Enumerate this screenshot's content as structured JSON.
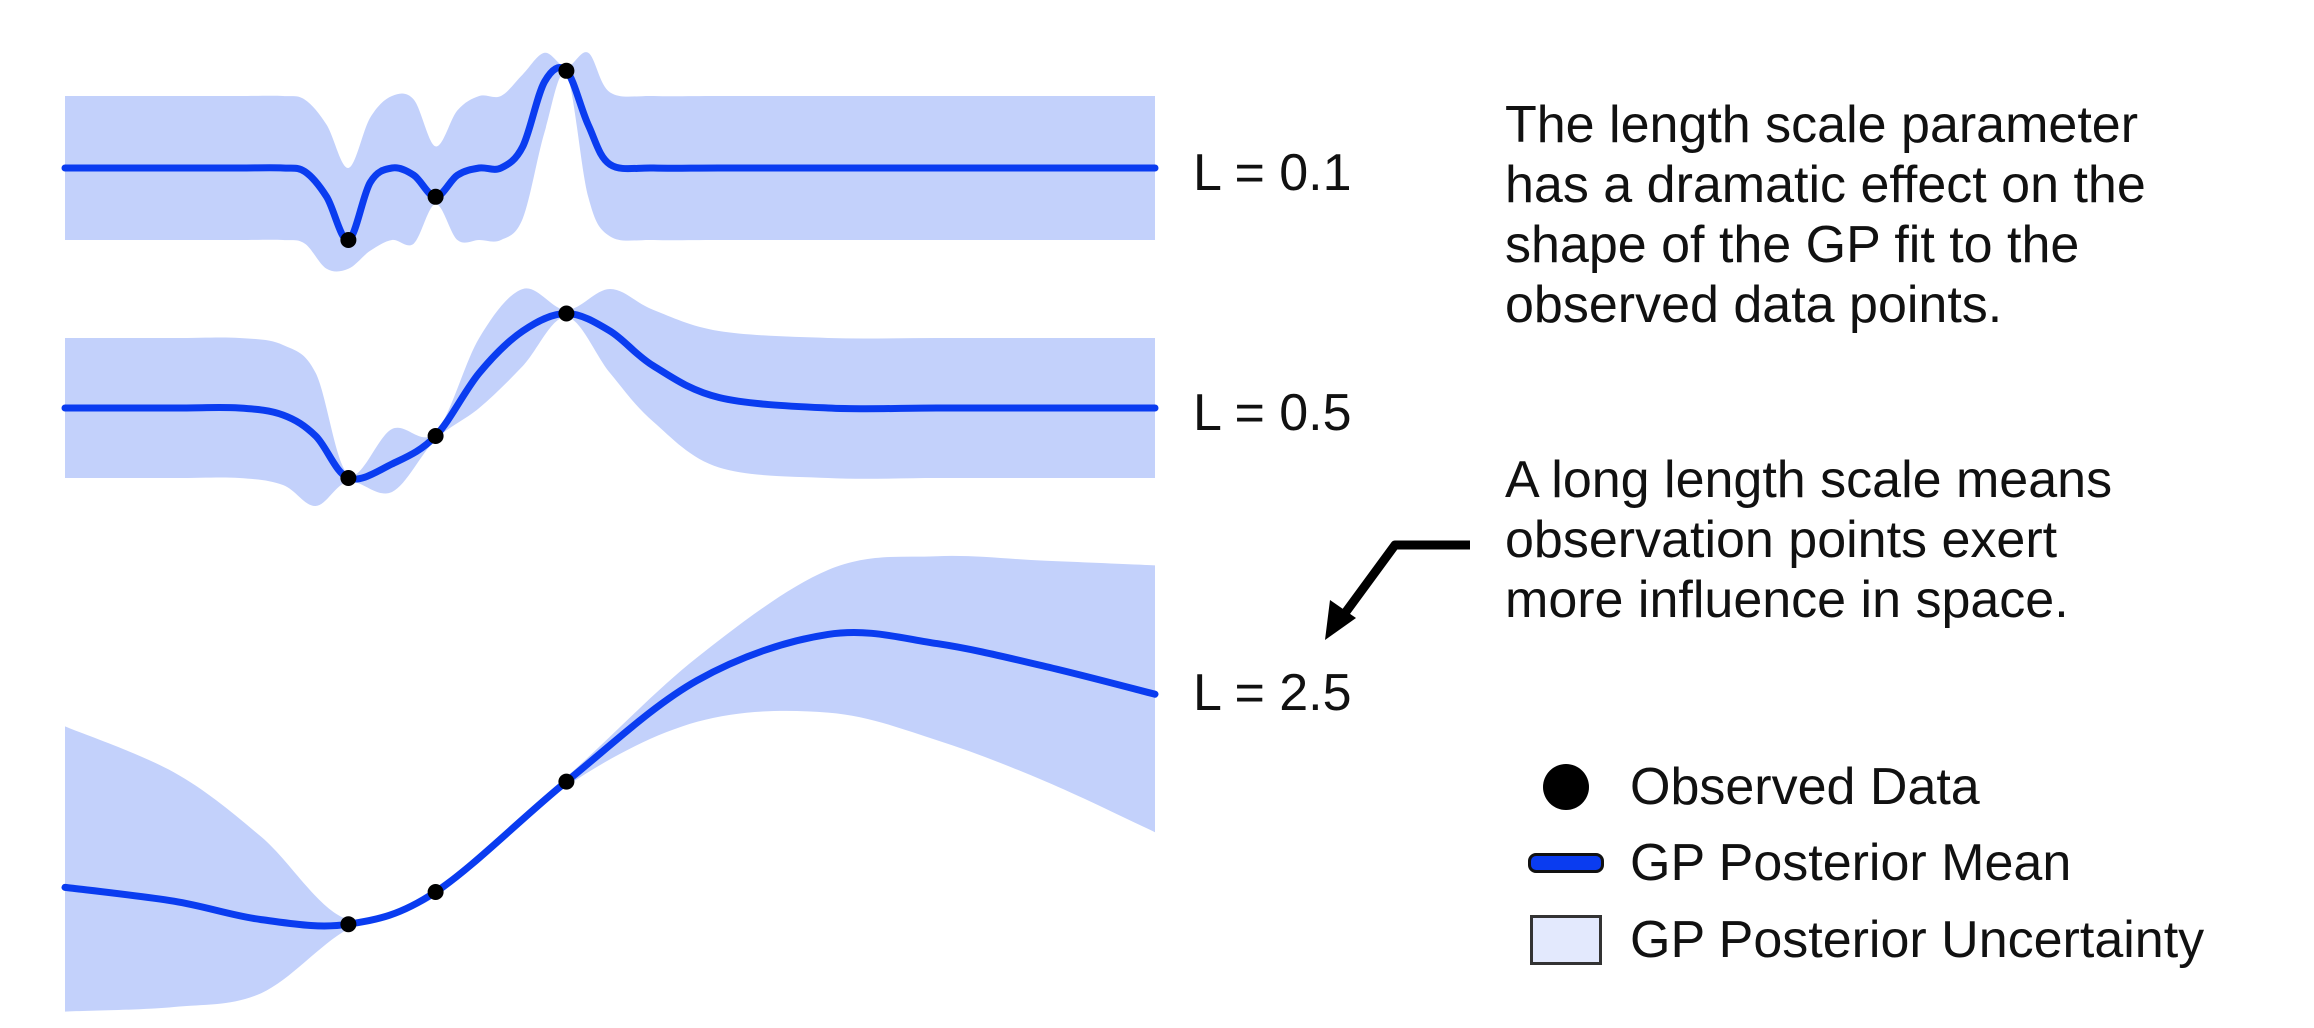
{
  "figure": {
    "colors": {
      "mean_line": "#0a3cf0",
      "uncertainty": "#c3d1fb",
      "observed": "#000000",
      "text": "#111111",
      "arrow": "#000000"
    }
  },
  "chart_data": [
    {
      "type": "line",
      "panel_label": "L = 0.1",
      "x": [
        -1.5,
        -1.0,
        -0.7,
        -0.5,
        -0.4,
        -0.3,
        -0.2,
        -0.1,
        0.0,
        0.1,
        0.2,
        0.3,
        0.4,
        0.5,
        0.6,
        0.7,
        0.8,
        0.9,
        1.0,
        1.2,
        1.5,
        2.0,
        2.5,
        3.0,
        3.5
      ],
      "series": [
        {
          "kind": "mean",
          "values": [
            0,
            0,
            0,
            0,
            -0.05,
            -0.4,
            -1.0,
            -0.2,
            0.0,
            -0.1,
            -0.4,
            -0.1,
            0,
            0,
            0.3,
            1.2,
            1.35,
            0.6,
            0.05,
            0,
            0,
            0,
            0,
            0,
            0
          ]
        },
        {
          "kind": "uncertainty",
          "upper": [
            1,
            1,
            1,
            1,
            0.95,
            0.6,
            0.0,
            0.7,
            1.0,
            0.95,
            0.3,
            0.8,
            1,
            1,
            1.3,
            1.6,
            1.4,
            1.6,
            1.05,
            1,
            1,
            1,
            1,
            1,
            1
          ],
          "lower": [
            -1,
            -1,
            -1,
            -1,
            -1.05,
            -1.4,
            -1.4,
            -1.15,
            -1.0,
            -1.05,
            -0.5,
            -1.0,
            -1,
            -1,
            -0.7,
            0.5,
            1.3,
            -0.4,
            -0.95,
            -1,
            -1,
            -1,
            -1,
            -1,
            -1
          ]
        }
      ],
      "observed": [
        {
          "x": -0.2,
          "y": -1.0
        },
        {
          "x": 0.2,
          "y": -0.4
        },
        {
          "x": 0.8,
          "y": 1.35
        }
      ]
    },
    {
      "type": "line",
      "panel_label": "L = 0.5",
      "x": [
        -1.5,
        -1.0,
        -0.7,
        -0.5,
        -0.35,
        -0.2,
        0.0,
        0.2,
        0.4,
        0.6,
        0.8,
        1.0,
        1.2,
        1.5,
        2.0,
        2.5,
        3.0,
        3.5
      ],
      "series": [
        {
          "kind": "mean",
          "values": [
            0,
            0,
            0,
            -0.1,
            -0.4,
            -1.0,
            -0.8,
            -0.4,
            0.5,
            1.1,
            1.35,
            1.1,
            0.6,
            0.15,
            0,
            0,
            0,
            0
          ],
          "note": ""
        },
        {
          "kind": "uncertainty",
          "upper": [
            1,
            1,
            1,
            0.9,
            0.5,
            -0.95,
            -0.3,
            -0.35,
            1.0,
            1.7,
            1.4,
            1.7,
            1.4,
            1.1,
            1,
            1,
            1,
            1
          ],
          "lower": [
            -1,
            -1,
            -1,
            -1.1,
            -1.4,
            -1.05,
            -1.2,
            -0.45,
            0.0,
            0.6,
            1.3,
            0.5,
            -0.2,
            -0.85,
            -1,
            -1,
            -1,
            -1
          ]
        }
      ],
      "observed": [
        {
          "x": -0.2,
          "y": -1.0
        },
        {
          "x": 0.2,
          "y": -0.4
        },
        {
          "x": 0.8,
          "y": 1.35
        }
      ]
    },
    {
      "type": "line",
      "panel_label": "L = 2.5",
      "x": [
        -1.5,
        -1.0,
        -0.6,
        -0.2,
        0.2,
        0.8,
        1.4,
        2.0,
        2.5,
        3.0,
        3.5
      ],
      "series": [
        {
          "kind": "mean",
          "values": [
            -0.95,
            -1.1,
            -1.3,
            -1.35,
            -1.0,
            0.2,
            1.3,
            1.8,
            1.7,
            1.45,
            1.15
          ]
        },
        {
          "kind": "uncertainty",
          "upper": [
            0.8,
            0.3,
            -0.4,
            -1.3,
            -0.95,
            0.25,
            1.55,
            2.5,
            2.65,
            2.6,
            2.55
          ],
          "lower": [
            -2.3,
            -2.25,
            -2.1,
            -1.4,
            -1.05,
            0.15,
            0.85,
            0.95,
            0.65,
            0.2,
            -0.35
          ]
        }
      ],
      "observed": [
        {
          "x": -0.2,
          "y": -1.35
        },
        {
          "x": 0.2,
          "y": -1.0
        },
        {
          "x": 0.8,
          "y": 0.2
        }
      ]
    }
  ],
  "annotations": {
    "caption_1": [
      "The length scale parameter",
      "has a dramatic effect on the",
      "shape of the GP fit to the",
      "observed data points."
    ],
    "caption_2": [
      "A long length scale means",
      "observation points exert",
      "more influence in space."
    ]
  },
  "legend": {
    "items": [
      {
        "label": "Observed Data",
        "icon": "dot-icon"
      },
      {
        "label": "GP Posterior Mean",
        "icon": "line-icon"
      },
      {
        "label": "GP Posterior Uncertainty",
        "icon": "box-icon"
      }
    ]
  }
}
